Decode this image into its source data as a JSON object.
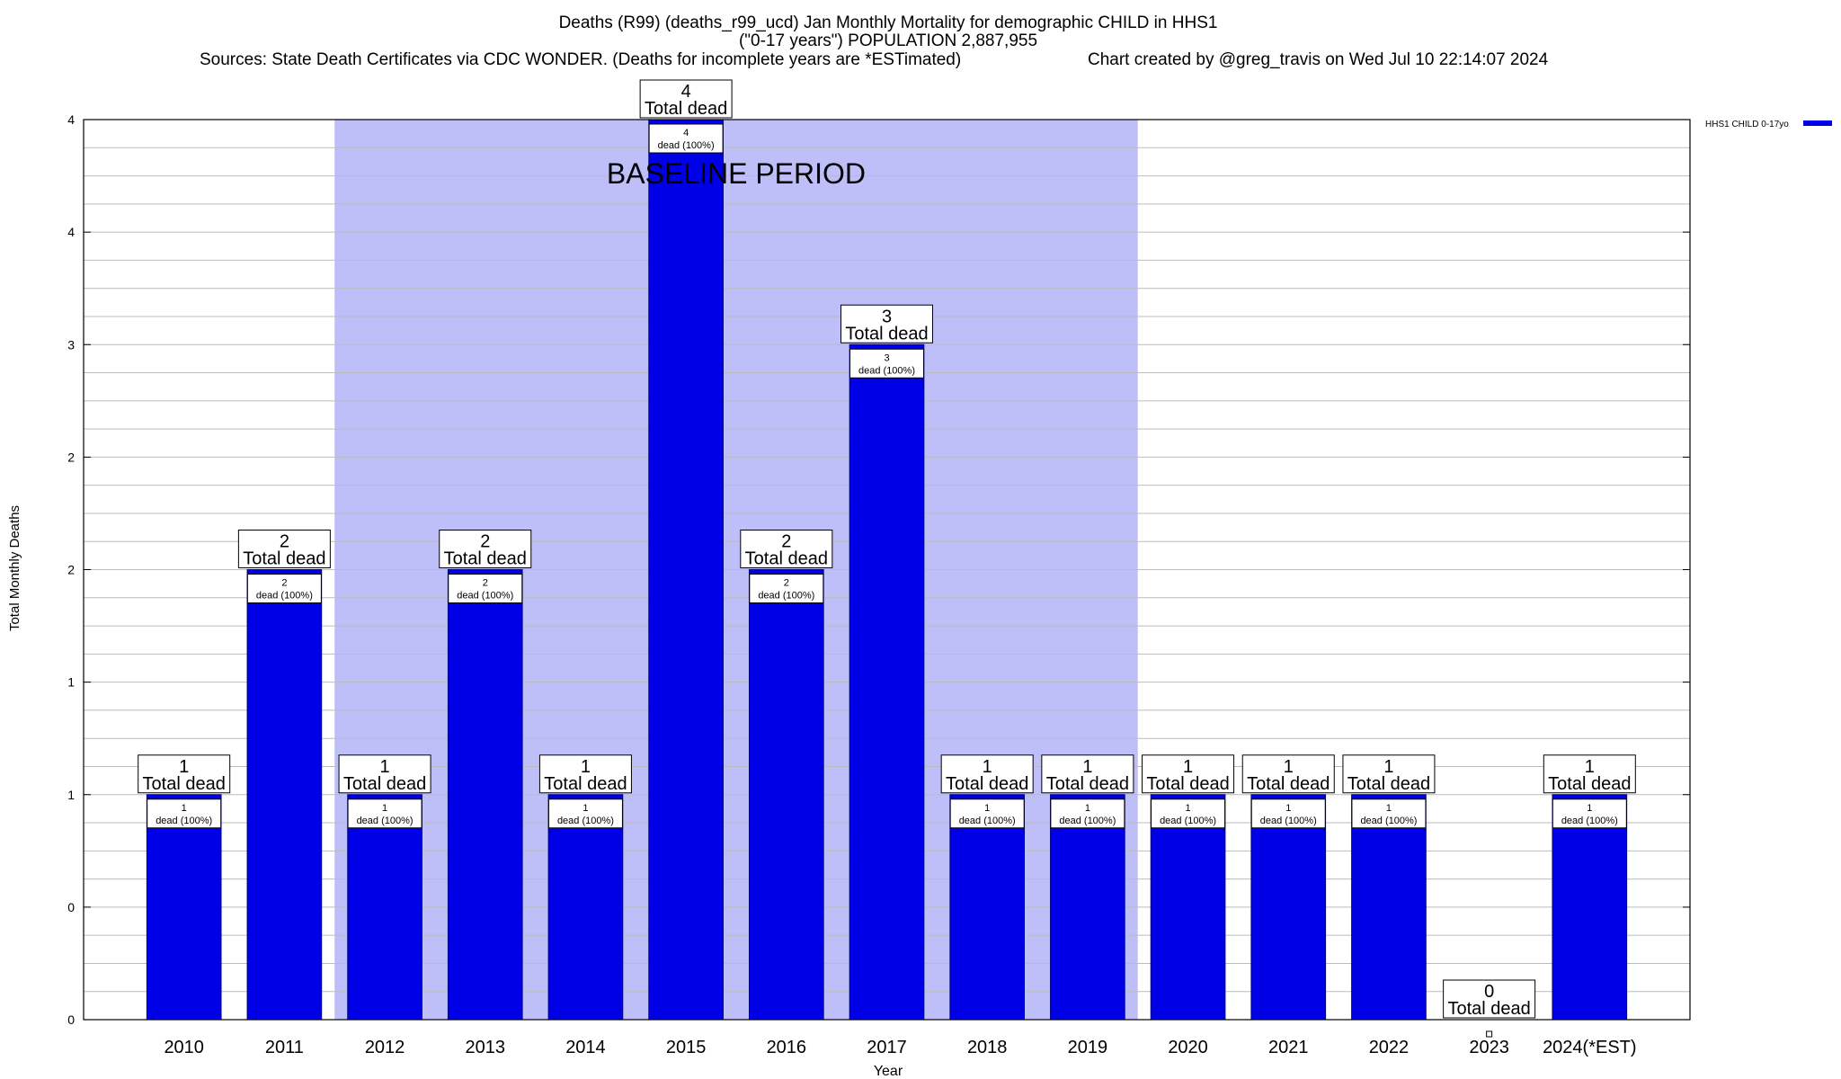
{
  "header": {
    "title_line1": "Deaths (R99) (deaths_r99_ucd) Jan Monthly Mortality for demographic CHILD in HHS1",
    "title_line2": "(\"0-17 years\") POPULATION 2,887,955",
    "sources": "Sources: State Death Certificates via CDC WONDER. (Deaths for incomplete years are *ESTimated)",
    "credit": "Chart created by @greg_travis on Wed Jul 10 22:14:07 2024"
  },
  "chart_data": {
    "type": "bar",
    "categories": [
      "2010",
      "2011",
      "2012",
      "2013",
      "2014",
      "2015",
      "2016",
      "2017",
      "2018",
      "2019",
      "2020",
      "2021",
      "2022",
      "2023",
      "2024(*EST)"
    ],
    "series": [
      {
        "name": "HHS1 CHILD 0-17yo",
        "values": [
          1,
          2,
          1,
          2,
          1,
          4,
          2,
          3,
          1,
          1,
          1,
          1,
          1,
          0,
          1
        ]
      }
    ],
    "ylim": [
      0,
      4
    ],
    "ytick_values": [
      0,
      0.5,
      1,
      1.5,
      2,
      2.5,
      3,
      3.5,
      4
    ],
    "ytick_labels": [
      "0",
      "0",
      "1",
      "1",
      "2",
      "2",
      "3",
      "4",
      "4"
    ],
    "xlabel": "Year",
    "ylabel": "Total Monthly Deaths",
    "total_label_text": "Total dead",
    "inner_label_text": "dead (100%)",
    "baseline_period": {
      "label": "BASELINE PERIOD",
      "start": "2012",
      "end": "2019"
    },
    "legend_placement": "top-right",
    "grid": true,
    "colors": {
      "bar": "#0000e6",
      "bar_stroke": "#000080",
      "baseline_shade": "#bebef8",
      "grid": "#bbbbbb"
    }
  }
}
